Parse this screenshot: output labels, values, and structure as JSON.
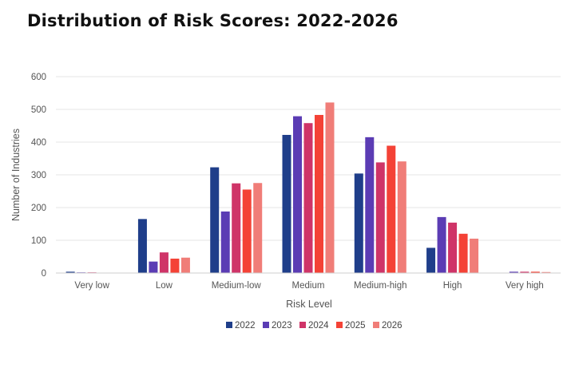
{
  "chart_data": {
    "type": "bar",
    "title": "Distribution of Risk Scores: 2022-2026",
    "xlabel": "Risk Level",
    "ylabel": "Number of Industries",
    "ylim": [
      0,
      600
    ],
    "yticks": [
      "0",
      "100",
      "200",
      "300",
      "400",
      "500",
      "600"
    ],
    "grid": true,
    "legend_position": "bottom",
    "categories": [
      "Very low",
      "Low",
      "Medium-low",
      "Medium",
      "Medium-high",
      "High",
      "Very high"
    ],
    "series": [
      {
        "name": "2022",
        "color": "#1f3e8a",
        "values": [
          4,
          165,
          323,
          422,
          304,
          77,
          0
        ]
      },
      {
        "name": "2023",
        "color": "#5b3cb4",
        "values": [
          2,
          35,
          188,
          479,
          415,
          171,
          4
        ]
      },
      {
        "name": "2024",
        "color": "#cf3468",
        "values": [
          2,
          63,
          274,
          458,
          338,
          154,
          4
        ]
      },
      {
        "name": "2025",
        "color": "#f44236",
        "values": [
          0,
          44,
          255,
          483,
          389,
          120,
          4
        ]
      },
      {
        "name": "2026",
        "color": "#f07d78",
        "values": [
          0,
          47,
          275,
          521,
          341,
          105,
          3
        ]
      }
    ]
  }
}
